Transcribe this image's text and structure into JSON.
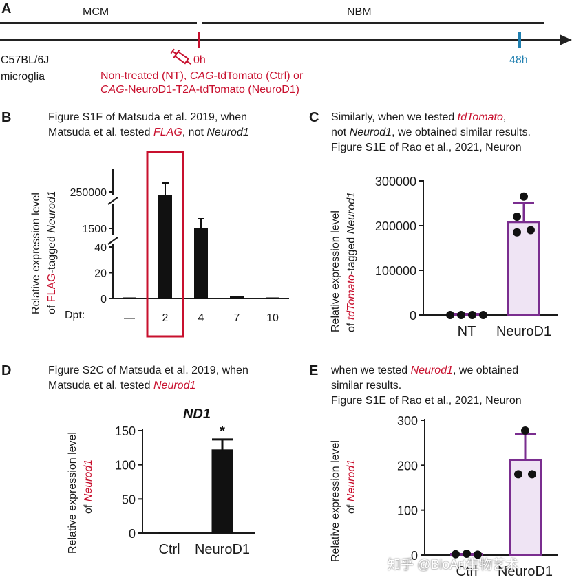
{
  "panelA": {
    "label": "A",
    "phase1": "MCM",
    "phase2": "NBM",
    "mouse_line": "C57BL/6J",
    "cell_type": "microglia",
    "t0": "0h",
    "t1": "48h",
    "treat_line1": "Non-treated (NT), ",
    "treat_cag1": "CAG",
    "treat_line1b": "-tdTomato (Ctrl) or",
    "treat_cag2": "CAG",
    "treat_line2b": "-NeuroD1-T2A-tdTomato (NeuroD1)",
    "colors": {
      "red": "#c8102e",
      "blue": "#1f7fb0"
    }
  },
  "panelB": {
    "label": "B",
    "caption_line1": "Figure S1F of Matsuda et al. 2019, when",
    "caption_line2a": "Matsuda et al. tested ",
    "caption_flag": "FLAG",
    "caption_line2b": ", not ",
    "caption_gene": "Neurod1",
    "ylabel_line1": "Relative expression level",
    "ylabel_of": "of ",
    "ylabel_flag": "FLAG",
    "ylabel_tagged": "-tagged ",
    "ylabel_gene": "Neurod1",
    "x_prefix": "Dpt:",
    "highlight_color": "#c8102e"
  },
  "panelC": {
    "label": "C",
    "caption_line1a": "Similarly, when we tested ",
    "caption_gene": "tdTomato",
    "caption_line1b": ",",
    "caption_line2a": "not ",
    "caption_line2gene": "Neurod1",
    "caption_line2b": ", we obtained similar results.",
    "caption_line3": "Figure S1E of Rao et al., 2021, Neuron",
    "ylabel_line1": "Relative expression level",
    "ylabel_of": "of ",
    "ylabel_td": "tdTomato",
    "ylabel_tagged": "-tagged ",
    "ylabel_gene": "Neurod1"
  },
  "panelD": {
    "label": "D",
    "caption_line1": "Figure S2C of Matsuda et al. 2019, when",
    "caption_line2a": "Matsuda et al. tested ",
    "caption_gene": "Neurod1",
    "ylabel_line1": "Relative expression level",
    "ylabel_of": "of ",
    "ylabel_gene": "Neurod1"
  },
  "panelE": {
    "label": "E",
    "caption_line1a": "when we tested ",
    "caption_gene": "Neurod1",
    "caption_line1b": ", we obtained",
    "caption_line2": "similar results.",
    "caption_line3": "Figure S1E of Rao et al., 2021, Neuron",
    "ylabel_line1": "Relative expression level",
    "ylabel_of": "of ",
    "ylabel_gene": "Neurod1"
  },
  "watermark": "知乎 @BioArt生物艺术",
  "chart_data": [
    {
      "id": "B",
      "type": "bar",
      "categories": [
        "—",
        "2",
        "4",
        "7",
        "10"
      ],
      "values": [
        0.8,
        250000,
        1500,
        1.8,
        0.6
      ],
      "errors": [
        0,
        25000,
        300,
        0,
        0
      ],
      "y_segments": [
        {
          "range": [
            0,
            40
          ],
          "ticks": [
            0,
            20,
            40
          ]
        },
        {
          "range": [
            1500,
            1500
          ],
          "ticks": [
            1500
          ]
        },
        {
          "range": [
            250000,
            250000
          ],
          "ticks": [
            250000
          ]
        }
      ],
      "tick_labels": [
        "0",
        "20",
        "40",
        "1500",
        "250000"
      ],
      "broken_axis": true,
      "highlight_category": "2",
      "xlabel": "Dpt:",
      "ylabel": "Relative expression level of FLAG-tagged Neurod1"
    },
    {
      "id": "C",
      "type": "bar",
      "categories": [
        "NT",
        "NeuroD1"
      ],
      "values": [
        0,
        208000
      ],
      "errors": [
        0,
        42000
      ],
      "points": [
        [
          0,
          0,
          0,
          0
        ],
        [
          265000,
          220000,
          190000,
          185000
        ]
      ],
      "ylim": [
        0,
        300000
      ],
      "ticks": [
        0,
        100000,
        200000,
        300000
      ],
      "bar_color": "#efe4f4",
      "bar_edge": "#7a2d8f",
      "ylabel": "Relative expression level of tdTomato-tagged Neurod1"
    },
    {
      "id": "D",
      "type": "bar",
      "title": "ND1",
      "categories": [
        "Ctrl",
        "NeuroD1"
      ],
      "values": [
        1,
        122
      ],
      "errors": [
        0,
        15
      ],
      "annotation": "*",
      "ylim": [
        0,
        150
      ],
      "ticks": [
        0,
        50,
        100,
        150
      ],
      "ylabel": "Relative expression level of Neurod1"
    },
    {
      "id": "E",
      "type": "bar",
      "categories": [
        "Ctrl",
        "NeuroD1"
      ],
      "values": [
        1,
        212
      ],
      "errors": [
        0,
        57
      ],
      "points": [
        [
          2,
          3,
          1
        ],
        [
          277,
          180,
          180
        ]
      ],
      "ylim": [
        0,
        300
      ],
      "ticks": [
        0,
        100,
        200,
        300
      ],
      "bar_color": "#efe4f4",
      "bar_edge": "#7a2d8f",
      "ylabel": "Relative expression level of Neurod1"
    }
  ]
}
